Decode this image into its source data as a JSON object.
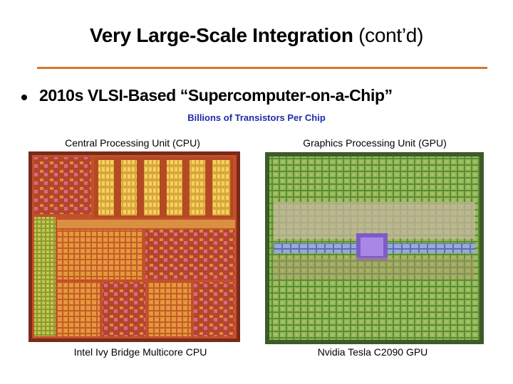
{
  "slide": {
    "title": {
      "main": "Very Large-Scale Integration",
      "suffix": "(cont’d)"
    },
    "bullet": "2010s VLSI-Based “Supercomputer-on-a-Chip”",
    "subtitle": "Billions of Transistors Per Chip",
    "panels": [
      {
        "heading": "Central Processing Unit (CPU)",
        "caption": "Intel Ivy Bridge Multicore CPU"
      },
      {
        "heading": "Graphics Processing Unit (GPU)",
        "caption": "Nvidia Tesla C2090 GPU"
      }
    ]
  }
}
